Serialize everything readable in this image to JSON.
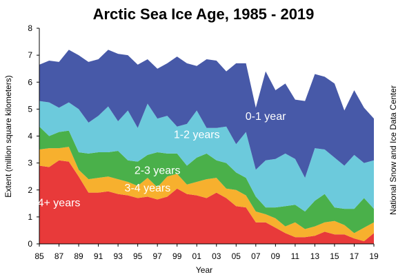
{
  "chart_data": {
    "type": "area",
    "stacked": true,
    "title": "Arctic Sea Ice Age, 1985 - 2019",
    "xlabel": "Year",
    "ylabel": "Extent (million square kilometers)",
    "credit": "National Snow and Ice Data Center",
    "xlim": [
      1985,
      2019
    ],
    "ylim": [
      0,
      8
    ],
    "grid": false,
    "legend": "inline labels",
    "x_ticks": [
      {
        "value": 1985,
        "label": "85"
      },
      {
        "value": 1987,
        "label": "87"
      },
      {
        "value": 1989,
        "label": "89"
      },
      {
        "value": 1991,
        "label": "91"
      },
      {
        "value": 1993,
        "label": "93"
      },
      {
        "value": 1995,
        "label": "95"
      },
      {
        "value": 1997,
        "label": "97"
      },
      {
        "value": 1999,
        "label": "99"
      },
      {
        "value": 2001,
        "label": "01"
      },
      {
        "value": 2003,
        "label": "03"
      },
      {
        "value": 2005,
        "label": "05"
      },
      {
        "value": 2007,
        "label": "07"
      },
      {
        "value": 2009,
        "label": "09"
      },
      {
        "value": 2011,
        "label": "11"
      },
      {
        "value": 2013,
        "label": "13"
      },
      {
        "value": 2015,
        "label": "15"
      },
      {
        "value": 2017,
        "label": "17"
      },
      {
        "value": 2019,
        "label": "19"
      }
    ],
    "y_ticks": [
      0,
      1,
      2,
      3,
      4,
      5,
      6,
      7,
      8
    ],
    "x": [
      1985,
      1986,
      1987,
      1988,
      1989,
      1990,
      1991,
      1992,
      1993,
      1994,
      1995,
      1996,
      1997,
      1998,
      1999,
      2000,
      2001,
      2002,
      2003,
      2004,
      2005,
      2006,
      2007,
      2008,
      2009,
      2010,
      2011,
      2012,
      2013,
      2014,
      2015,
      2016,
      2017,
      2018,
      2019
    ],
    "series": [
      {
        "name": "4+ years",
        "color": "#e83a3a",
        "label_color": "#ffffff",
        "values": [
          2.9,
          2.85,
          3.1,
          3.05,
          2.5,
          1.9,
          1.9,
          1.95,
          1.85,
          1.8,
          1.7,
          1.75,
          1.65,
          1.75,
          2.05,
          1.85,
          1.8,
          1.7,
          1.9,
          1.7,
          1.4,
          1.35,
          0.8,
          0.8,
          0.6,
          0.4,
          0.25,
          0.25,
          0.3,
          0.45,
          0.35,
          0.35,
          0.2,
          0.1,
          0.4
        ]
      },
      {
        "name": "3-4 years",
        "color": "#f7b02e",
        "label_color": "#ffffff",
        "values": [
          0.6,
          0.7,
          0.45,
          0.55,
          0.25,
          0.5,
          0.55,
          0.55,
          0.55,
          0.5,
          0.45,
          0.7,
          0.45,
          0.75,
          0.55,
          0.35,
          0.5,
          0.7,
          0.55,
          0.35,
          0.6,
          0.45,
          0.4,
          0.3,
          0.35,
          0.25,
          0.55,
          0.3,
          0.35,
          0.35,
          0.5,
          0.35,
          0.2,
          0.5,
          0.4
        ]
      },
      {
        "name": "2-3 years",
        "color": "#4ab04a",
        "label_color": "#ffffff",
        "values": [
          0.85,
          0.45,
          0.6,
          0.6,
          0.65,
          0.95,
          0.95,
          0.9,
          1.05,
          0.8,
          0.9,
          0.85,
          1.3,
          0.85,
          0.75,
          0.7,
          0.9,
          0.95,
          0.65,
          0.95,
          0.65,
          0.65,
          0.55,
          0.25,
          0.4,
          0.75,
          0.65,
          0.65,
          0.95,
          1.05,
          0.5,
          0.6,
          0.9,
          1.1,
          0.5
        ]
      },
      {
        "name": "1-2 years",
        "color": "#6ccadc",
        "label_color": "#ffffff",
        "values": [
          0.95,
          1.25,
          0.9,
          1.05,
          1.6,
          1.15,
          1.35,
          1.7,
          1.1,
          1.85,
          1.25,
          1.9,
          1.25,
          1.4,
          1.0,
          1.55,
          1.75,
          0.95,
          1.2,
          1.35,
          1.05,
          1.7,
          1.0,
          1.75,
          1.8,
          1.95,
          1.7,
          1.25,
          1.95,
          1.65,
          1.85,
          1.6,
          2.0,
          1.3,
          1.8
        ]
      },
      {
        "name": "0-1 year",
        "color": "#4759a8",
        "label_color": "#ffffff",
        "values": [
          1.35,
          1.55,
          1.7,
          1.95,
          2.0,
          2.25,
          2.1,
          2.1,
          2.5,
          2.05,
          2.35,
          1.65,
          1.85,
          1.95,
          2.6,
          2.25,
          1.65,
          2.55,
          2.5,
          2.05,
          3.0,
          2.55,
          2.3,
          3.3,
          2.55,
          2.6,
          2.2,
          2.85,
          2.75,
          2.7,
          2.75,
          2.05,
          2.4,
          2.05,
          1.55
        ]
      }
    ]
  }
}
